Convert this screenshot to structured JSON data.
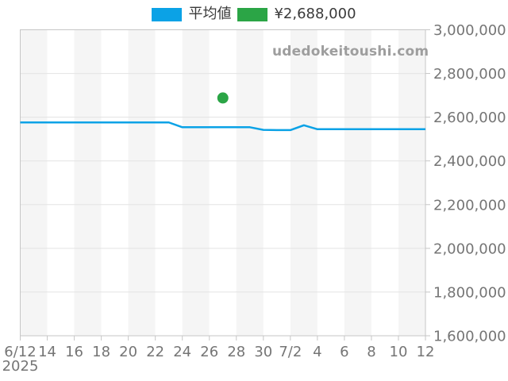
{
  "legend": [
    {
      "label": "平均値",
      "color": "#0ba2e6"
    },
    {
      "label": "¥2,688,000",
      "color": "#2ba546"
    }
  ],
  "watermark": "udedokeitoushi.com",
  "chart_data": {
    "type": "line",
    "title": "",
    "xlabel": "",
    "ylabel": "",
    "ylim": [
      1600000,
      3000000
    ],
    "x_day_max": 30,
    "x_tick_labels": [
      "6/12",
      "14",
      "16",
      "18",
      "20",
      "22",
      "24",
      "26",
      "28",
      "30",
      "7/2",
      "4",
      "6",
      "8",
      "10",
      "12"
    ],
    "x_axis_secondary_label": "2025",
    "y_tick_values": [
      1600000,
      1800000,
      2000000,
      2200000,
      2400000,
      2600000,
      2800000,
      3000000
    ],
    "y_tick_labels": [
      "1,600,000",
      "1,800,000",
      "2,000,000",
      "2,200,000",
      "2,400,000",
      "2,600,000",
      "2,800,000",
      "3,000,000"
    ],
    "grid": true,
    "legend_position": "top-center",
    "colors": {
      "stripe": "#f5f5f5",
      "stripe_alt": "#ffffff",
      "grid": "#e3e3e3",
      "border": "#c6c6c6",
      "label": "#757575"
    },
    "series": [
      {
        "name": "平均値",
        "type": "line",
        "color": "#0ba2e6",
        "x_days": [
          0,
          1,
          2,
          3,
          4,
          5,
          6,
          7,
          8,
          9,
          10,
          11,
          12,
          13,
          14,
          15,
          16,
          17,
          18,
          19,
          20,
          21,
          22,
          23,
          24,
          25,
          26,
          27,
          28,
          29,
          30
        ],
        "dates": [
          "6/12",
          "6/13",
          "6/14",
          "6/15",
          "6/16",
          "6/17",
          "6/18",
          "6/19",
          "6/20",
          "6/21",
          "6/22",
          "6/23",
          "6/24",
          "6/25",
          "6/26",
          "6/27",
          "6/28",
          "6/29",
          "6/30",
          "7/1",
          "7/2",
          "7/3",
          "7/4",
          "7/5",
          "7/6",
          "7/7",
          "7/8",
          "7/9",
          "7/10",
          "7/11",
          "7/12"
        ],
        "values": [
          2576000,
          2576000,
          2576000,
          2576000,
          2576000,
          2576000,
          2576000,
          2576000,
          2576000,
          2576000,
          2576000,
          2576000,
          2554000,
          2554000,
          2554000,
          2554000,
          2554000,
          2554000,
          2542000,
          2541000,
          2541000,
          2563000,
          2545000,
          2545000,
          2545000,
          2545000,
          2545000,
          2545000,
          2545000,
          2545000,
          2545000
        ]
      },
      {
        "name": "¥2,688,000",
        "type": "scatter",
        "color": "#2ba546",
        "points": [
          {
            "x_day": 15,
            "date": "6/27",
            "value": 2688000
          }
        ]
      }
    ]
  }
}
